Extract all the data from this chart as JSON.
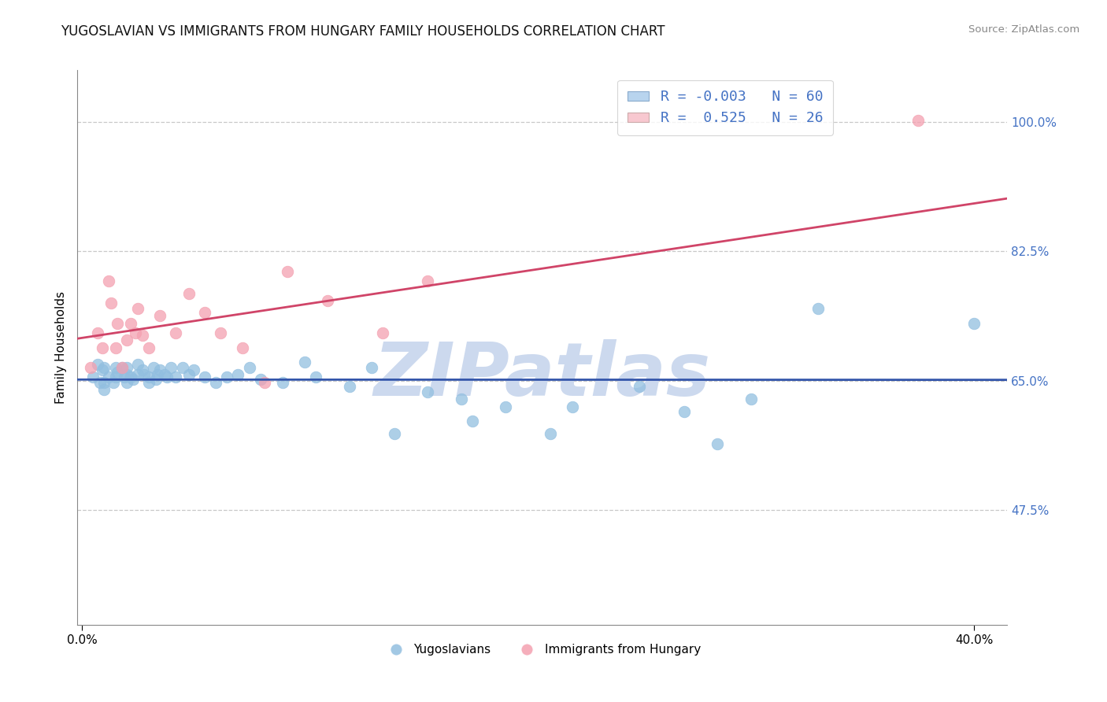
{
  "title": "YUGOSLAVIAN VS IMMIGRANTS FROM HUNGARY FAMILY HOUSEHOLDS CORRELATION CHART",
  "source": "Source: ZipAtlas.com",
  "ylabel": "Family Households",
  "yticks": [
    0.475,
    0.65,
    0.825,
    1.0
  ],
  "ytick_labels": [
    "47.5%",
    "65.0%",
    "82.5%",
    "100.0%"
  ],
  "xlim": [
    -0.002,
    0.415
  ],
  "ylim": [
    0.32,
    1.07
  ],
  "blue_color": "#92bfe0",
  "pink_color": "#f4a0b0",
  "blue_r": -0.003,
  "pink_r": 0.525,
  "blue_line_color": "#3355aa",
  "pink_line_color": "#d04468",
  "watermark": "ZIPatlas",
  "watermark_color": "#ccd9ee",
  "blue_x": [
    0.005,
    0.007,
    0.008,
    0.009,
    0.01,
    0.01,
    0.01,
    0.012,
    0.014,
    0.015,
    0.015,
    0.016,
    0.018,
    0.019,
    0.02,
    0.02,
    0.02,
    0.022,
    0.023,
    0.025,
    0.025,
    0.027,
    0.028,
    0.03,
    0.03,
    0.032,
    0.033,
    0.034,
    0.035,
    0.037,
    0.038,
    0.04,
    0.042,
    0.045,
    0.048,
    0.05,
    0.055,
    0.06,
    0.065,
    0.07,
    0.075,
    0.08,
    0.09,
    0.1,
    0.105,
    0.12,
    0.13,
    0.14,
    0.155,
    0.17,
    0.175,
    0.19,
    0.21,
    0.22,
    0.25,
    0.27,
    0.285,
    0.3,
    0.33,
    0.4
  ],
  "blue_y": [
    0.655,
    0.672,
    0.648,
    0.665,
    0.648,
    0.668,
    0.638,
    0.655,
    0.648,
    0.668,
    0.655,
    0.662,
    0.668,
    0.655,
    0.648,
    0.658,
    0.668,
    0.655,
    0.652,
    0.672,
    0.658,
    0.665,
    0.658,
    0.655,
    0.648,
    0.668,
    0.652,
    0.658,
    0.665,
    0.658,
    0.655,
    0.668,
    0.655,
    0.668,
    0.658,
    0.665,
    0.655,
    0.648,
    0.655,
    0.658,
    0.668,
    0.652,
    0.648,
    0.675,
    0.655,
    0.642,
    0.668,
    0.578,
    0.635,
    0.625,
    0.595,
    0.615,
    0.578,
    0.615,
    0.642,
    0.608,
    0.565,
    0.625,
    0.748,
    0.728
  ],
  "pink_x": [
    0.004,
    0.007,
    0.009,
    0.012,
    0.013,
    0.015,
    0.016,
    0.018,
    0.02,
    0.022,
    0.024,
    0.025,
    0.027,
    0.03,
    0.035,
    0.042,
    0.048,
    0.055,
    0.062,
    0.072,
    0.082,
    0.092,
    0.11,
    0.135,
    0.155,
    0.375
  ],
  "pink_y": [
    0.668,
    0.715,
    0.695,
    0.785,
    0.755,
    0.695,
    0.728,
    0.668,
    0.705,
    0.728,
    0.715,
    0.748,
    0.712,
    0.695,
    0.738,
    0.715,
    0.768,
    0.742,
    0.715,
    0.695,
    0.648,
    0.798,
    0.758,
    0.715,
    0.785,
    1.002
  ],
  "background_color": "#ffffff",
  "grid_color": "#c8c8c8",
  "legend_r1": "-0.003",
  "legend_n1": "60",
  "legend_r2": "0.525",
  "legend_n2": "26"
}
